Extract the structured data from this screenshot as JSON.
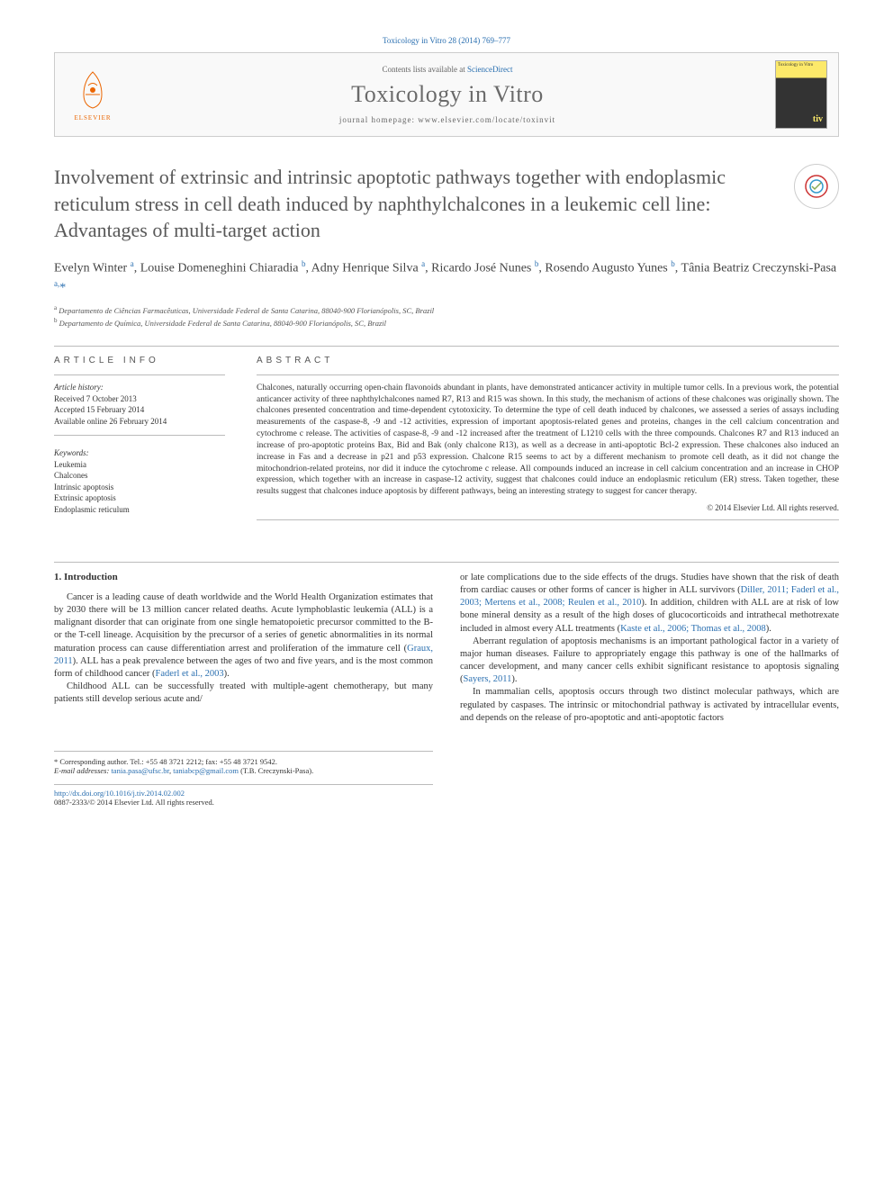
{
  "header": {
    "citation": "Toxicology in Vitro 28 (2014) 769–777",
    "contents_prefix": "Contents lists available at ",
    "contents_link": "ScienceDirect",
    "journal_name": "Toxicology in Vitro",
    "homepage_prefix": "journal homepage: ",
    "homepage_url": "www.elsevier.com/locate/toxinvit",
    "elsevier_label": "ELSEVIER",
    "crossmark_label": "CrossMark"
  },
  "article": {
    "title": "Involvement of extrinsic and intrinsic apoptotic pathways together with endoplasmic reticulum stress in cell death induced by naphthylchalcones in a leukemic cell line: Advantages of multi-target action",
    "authors_html": "Evelyn Winter <sup>a</sup>, Louise Domeneghini Chiaradia <sup>b</sup>, Adny Henrique Silva <sup>a</sup>, Ricardo José Nunes <sup>b</sup>, Rosendo Augusto Yunes <sup>b</sup>, Tânia Beatriz Creczynski-Pasa <sup>a,</sup><span class=\"ast\">*</span>",
    "affiliations": {
      "a": "Departamento de Ciências Farmacêuticas, Universidade Federal de Santa Catarina, 88040-900 Florianópolis, SC, Brazil",
      "b": "Departamento de Química, Universidade Federal de Santa Catarina, 88040-900 Florianópolis, SC, Brazil"
    }
  },
  "info": {
    "heading": "ARTICLE INFO",
    "history_label": "Article history:",
    "received": "Received 7 October 2013",
    "accepted": "Accepted 15 February 2014",
    "online": "Available online 26 February 2014",
    "keywords_label": "Keywords:",
    "keywords": [
      "Leukemia",
      "Chalcones",
      "Intrinsic apoptosis",
      "Extrinsic apoptosis",
      "Endoplasmic reticulum"
    ]
  },
  "abstract": {
    "heading": "ABSTRACT",
    "text": "Chalcones, naturally occurring open-chain flavonoids abundant in plants, have demonstrated anticancer activity in multiple tumor cells. In a previous work, the potential anticancer activity of three naphthylchalcones named R7, R13 and R15 was shown. In this study, the mechanism of actions of these chalcones was originally shown. The chalcones presented concentration and time-dependent cytotoxicity. To determine the type of cell death induced by chalcones, we assessed a series of assays including measurements of the caspase-8, -9 and -12 activities, expression of important apoptosis-related genes and proteins, changes in the cell calcium concentration and cytochrome c release. The activities of caspase-8, -9 and -12 increased after the treatment of L1210 cells with the three compounds. Chalcones R7 and R13 induced an increase of pro-apoptotic proteins Bax, Bid and Bak (only chalcone R13), as well as a decrease in anti-apoptotic Bcl-2 expression. These chalcones also induced an increase in Fas and a decrease in p21 and p53 expression. Chalcone R15 seems to act by a different mechanism to promote cell death, as it did not change the mitochondrion-related proteins, nor did it induce the cytochrome c release. All compounds induced an increase in cell calcium concentration and an increase in CHOP expression, which together with an increase in caspase-12 activity, suggest that chalcones could induce an endoplasmic reticulum (ER) stress. Taken together, these results suggest that chalcones induce apoptosis by different pathways, being an interesting strategy to suggest for cancer therapy.",
    "copyright": "© 2014 Elsevier Ltd. All rights reserved."
  },
  "body": {
    "heading": "1. Introduction",
    "col1_p1": "Cancer is a leading cause of death worldwide and the World Health Organization estimates that by 2030 there will be 13 million cancer related deaths. Acute lymphoblastic leukemia (ALL) is a malignant disorder that can originate from one single hematopoietic precursor committed to the B- or the T-cell lineage. Acquisition by the precursor of a series of genetic abnormalities in its normal maturation process can cause differentiation arrest and proliferation of the immature cell (",
    "col1_c1": "Graux, 2011",
    "col1_p1b": "). ALL has a peak prevalence between the ages of two and five years, and is the most common form of childhood cancer (",
    "col1_c2": "Faderl et al., 2003",
    "col1_p1c": ").",
    "col1_p2": "Childhood ALL can be successfully treated with multiple-agent chemotherapy, but many patients still develop serious acute and/",
    "col2_p1": "or late complications due to the side effects of the drugs. Studies have shown that the risk of death from cardiac causes or other forms of cancer is higher in ALL survivors (",
    "col2_c1": "Diller, 2011; Faderl et al., 2003; Mertens et al., 2008; Reulen et al., 2010",
    "col2_p1b": "). In addition, children with ALL are at risk of low bone mineral density as a result of the high doses of glucocorticoids and intrathecal methotrexate included in almost every ALL treatments (",
    "col2_c2": "Kaste et al., 2006; Thomas et al., 2008",
    "col2_p1c": ").",
    "col2_p2": "Aberrant regulation of apoptosis mechanisms is an important pathological factor in a variety of major human diseases. Failure to appropriately engage this pathway is one of the hallmarks of cancer development, and many cancer cells exhibit significant resistance to apoptosis signaling (",
    "col2_c3": "Sayers, 2011",
    "col2_p2b": ").",
    "col2_p3": "In mammalian cells, apoptosis occurs through two distinct molecular pathways, which are regulated by caspases. The intrinsic or mitochondrial pathway is activated by intracellular events, and depends on the release of pro-apoptotic and anti-apoptotic factors"
  },
  "footer": {
    "corresp": "* Corresponding author. Tel.: +55 48 3721 2212; fax: +55 48 3721 9542.",
    "email_label": "E-mail addresses: ",
    "email1": "tania.pasa@ufsc.br",
    "email2": "taniabcp@gmail.com",
    "email_suffix": " (T.B. Creczynski-Pasa).",
    "doi_url": "http://dx.doi.org/10.1016/j.tiv.2014.02.002",
    "issn_line": "0887-2333/© 2014 Elsevier Ltd. All rights reserved."
  },
  "colors": {
    "link": "#2a6fb0",
    "text": "#333333",
    "title_gray": "#575757",
    "elsevier_orange": "#eb6500",
    "cover_yellow": "#fce96a"
  }
}
